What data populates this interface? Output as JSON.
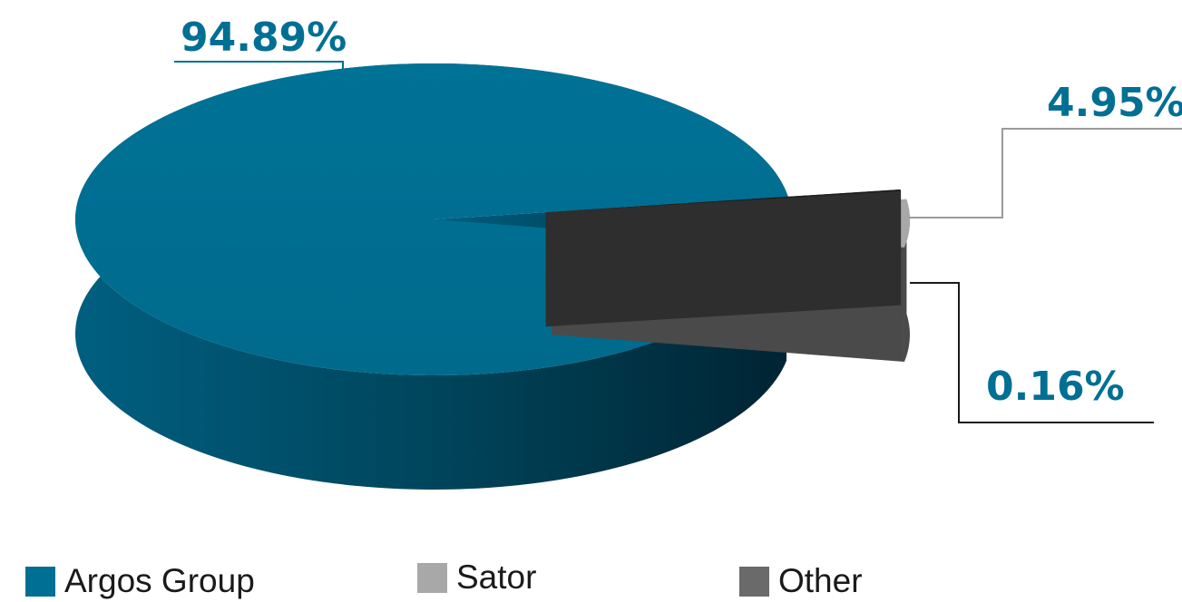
{
  "chart_data": {
    "type": "pie",
    "style": "3d-exploded",
    "series": [
      {
        "name": "Argos Group",
        "value": 94.89,
        "label": "94.89%",
        "color": "#006f94"
      },
      {
        "name": "Sator",
        "value": 4.95,
        "label": "4.95%",
        "color": "#a8a8a8"
      },
      {
        "name": "Other",
        "value": 0.16,
        "label": "0.16%",
        "color": "#6a6a6a"
      }
    ],
    "label_color": "#006f94",
    "legend_position": "bottom"
  }
}
